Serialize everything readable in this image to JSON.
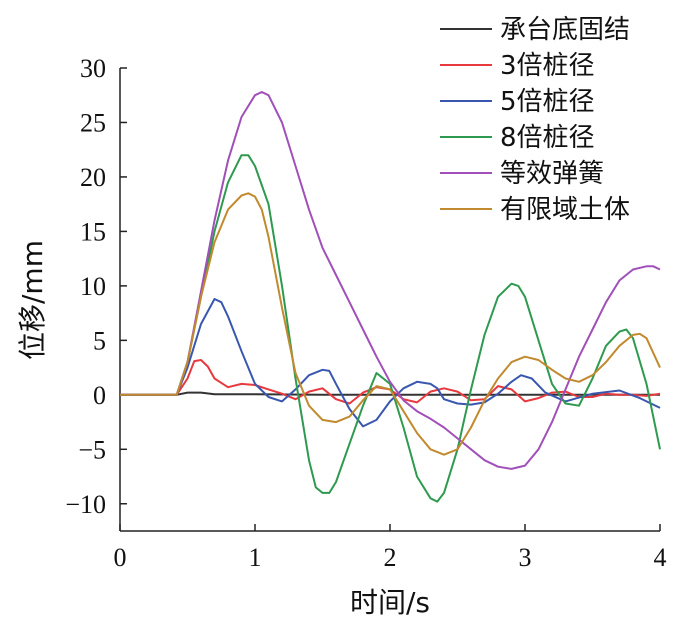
{
  "chart_data": {
    "type": "line",
    "xlabel": "时间/s",
    "ylabel": "位移/mm",
    "xlim": [
      0,
      4
    ],
    "ylim": [
      -12.5,
      30
    ],
    "xticks": [
      0,
      1,
      2,
      3,
      4
    ],
    "yticks": [
      -10,
      -5,
      0,
      5,
      10,
      15,
      20,
      25,
      30
    ],
    "xtick_labels": [
      "0",
      "1",
      "2",
      "3",
      "4"
    ],
    "ytick_labels": [
      "−10",
      "−5",
      "0",
      "5",
      "10",
      "15",
      "20",
      "25",
      "30"
    ],
    "grid": false,
    "legend_position": "top-right",
    "series": [
      {
        "name": "承台底固结",
        "color": "#333333",
        "x": [
          0,
          0.42,
          0.5,
          0.6,
          0.7,
          1.0,
          1.5,
          2.0,
          2.5,
          3.0,
          3.5,
          4.0
        ],
        "y": [
          0,
          0,
          0.2,
          0.2,
          0.05,
          0.05,
          0.0,
          0.0,
          0.0,
          0.0,
          0.0,
          0.0
        ]
      },
      {
        "name": "3倍桩径",
        "color": "#e8393f",
        "x": [
          0,
          0.42,
          0.5,
          0.55,
          0.6,
          0.65,
          0.7,
          0.8,
          0.9,
          1.0,
          1.1,
          1.2,
          1.3,
          1.4,
          1.5,
          1.6,
          1.7,
          1.8,
          1.9,
          2.0,
          2.1,
          2.2,
          2.3,
          2.4,
          2.5,
          2.6,
          2.7,
          2.8,
          2.9,
          3.0,
          3.1,
          3.2,
          3.3,
          3.4,
          3.5,
          3.6,
          3.7,
          3.8,
          3.9,
          4.0
        ],
        "y": [
          0,
          0,
          1.5,
          3.1,
          3.2,
          2.6,
          1.5,
          0.7,
          1.0,
          0.9,
          0.5,
          0.1,
          -0.4,
          0.3,
          0.6,
          -0.4,
          -0.8,
          0.2,
          0.7,
          0.5,
          -0.4,
          -0.7,
          0.3,
          0.6,
          0.3,
          -0.5,
          -0.4,
          0.8,
          0.5,
          -0.6,
          -0.3,
          0.2,
          0.3,
          -0.2,
          -0.2,
          0.1,
          0.0,
          0.0,
          -0.1,
          0.1
        ]
      },
      {
        "name": "5倍桩径",
        "color": "#3a57b0",
        "x": [
          0,
          0.42,
          0.5,
          0.6,
          0.7,
          0.75,
          0.8,
          0.9,
          1.0,
          1.1,
          1.2,
          1.3,
          1.4,
          1.5,
          1.55,
          1.6,
          1.7,
          1.8,
          1.9,
          2.0,
          2.1,
          2.2,
          2.3,
          2.35,
          2.4,
          2.5,
          2.6,
          2.7,
          2.8,
          2.9,
          2.97,
          3.05,
          3.15,
          3.3,
          3.5,
          3.7,
          3.85,
          4.0
        ],
        "y": [
          0,
          0,
          2.5,
          6.5,
          8.8,
          8.5,
          7.2,
          4.0,
          1.0,
          -0.2,
          -0.6,
          0.5,
          1.8,
          2.3,
          2.2,
          1.0,
          -1.3,
          -2.9,
          -2.3,
          -0.6,
          0.6,
          1.2,
          1.0,
          0.6,
          -0.4,
          -0.8,
          -0.9,
          -0.7,
          0.1,
          1.2,
          1.8,
          1.5,
          0.2,
          -0.6,
          0.1,
          0.4,
          -0.3,
          -1.2
        ]
      },
      {
        "name": "8倍桩径",
        "color": "#2e9a4f",
        "x": [
          0,
          0.42,
          0.5,
          0.6,
          0.7,
          0.8,
          0.9,
          0.95,
          1.0,
          1.1,
          1.2,
          1.3,
          1.4,
          1.45,
          1.5,
          1.55,
          1.6,
          1.7,
          1.8,
          1.9,
          2.0,
          2.1,
          2.2,
          2.3,
          2.35,
          2.4,
          2.5,
          2.6,
          2.7,
          2.8,
          2.9,
          2.95,
          3.0,
          3.1,
          3.2,
          3.3,
          3.4,
          3.5,
          3.6,
          3.7,
          3.75,
          3.8,
          3.9,
          4.0
        ],
        "y": [
          0,
          0,
          3.0,
          9.0,
          15.0,
          19.5,
          22.0,
          22.0,
          21.0,
          17.5,
          10.0,
          1.5,
          -6.0,
          -8.5,
          -9.0,
          -9.0,
          -8.0,
          -4.5,
          -1.0,
          2.0,
          1.0,
          -3.0,
          -7.5,
          -9.5,
          -9.8,
          -9.0,
          -5.0,
          0.5,
          5.5,
          9.0,
          10.2,
          10.0,
          9.0,
          5.0,
          1.0,
          -0.8,
          -1.0,
          1.5,
          4.5,
          5.8,
          6.0,
          5.2,
          1.0,
          -5.0
        ]
      },
      {
        "name": "等效弹簧",
        "color": "#a050b8",
        "x": [
          0,
          0.42,
          0.5,
          0.6,
          0.7,
          0.8,
          0.9,
          1.0,
          1.05,
          1.1,
          1.2,
          1.3,
          1.4,
          1.5,
          1.6,
          1.7,
          1.8,
          1.9,
          2.0,
          2.1,
          2.2,
          2.3,
          2.4,
          2.5,
          2.6,
          2.7,
          2.8,
          2.9,
          3.0,
          3.1,
          3.2,
          3.3,
          3.4,
          3.5,
          3.6,
          3.7,
          3.8,
          3.9,
          3.95,
          4.0
        ],
        "y": [
          0,
          0,
          3.0,
          9.5,
          16.0,
          21.5,
          25.5,
          27.5,
          27.8,
          27.5,
          25.0,
          21.0,
          17.0,
          13.5,
          11.0,
          8.5,
          6.0,
          3.5,
          1.2,
          -0.5,
          -1.5,
          -2.2,
          -3.0,
          -4.0,
          -5.0,
          -6.0,
          -6.6,
          -6.8,
          -6.5,
          -5.0,
          -2.5,
          0.5,
          3.5,
          6.0,
          8.5,
          10.5,
          11.5,
          11.8,
          11.8,
          11.5
        ]
      },
      {
        "name": "有限域土体",
        "color": "#c18a2e",
        "x": [
          0,
          0.42,
          0.5,
          0.6,
          0.7,
          0.8,
          0.9,
          0.95,
          1.0,
          1.05,
          1.1,
          1.2,
          1.3,
          1.4,
          1.5,
          1.6,
          1.7,
          1.8,
          1.9,
          2.0,
          2.1,
          2.2,
          2.3,
          2.4,
          2.5,
          2.6,
          2.7,
          2.8,
          2.9,
          3.0,
          3.1,
          3.2,
          3.3,
          3.4,
          3.5,
          3.6,
          3.7,
          3.8,
          3.85,
          3.9,
          4.0
        ],
        "y": [
          0,
          0,
          3.0,
          9.0,
          14.0,
          17.0,
          18.3,
          18.5,
          18.2,
          17.0,
          14.5,
          8.0,
          2.0,
          -1.0,
          -2.3,
          -2.5,
          -2.0,
          -0.5,
          0.8,
          0.5,
          -1.5,
          -3.5,
          -5.0,
          -5.5,
          -5.0,
          -3.0,
          -0.5,
          1.5,
          3.0,
          3.5,
          3.2,
          2.3,
          1.5,
          1.2,
          1.8,
          3.0,
          4.5,
          5.5,
          5.6,
          5.2,
          2.5
        ]
      }
    ]
  }
}
